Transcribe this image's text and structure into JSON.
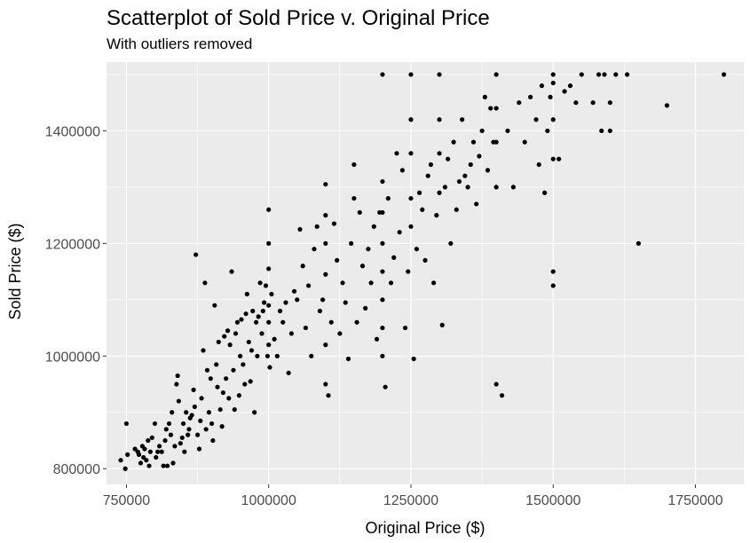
{
  "chart_data": {
    "type": "scatter",
    "title": "Scatterplot of Sold Price v. Original Price",
    "subtitle": "With outliers removed",
    "xlabel": "Original Price ($)",
    "ylabel": "Sold Price ($)",
    "xlim": [
      715000,
      1835000
    ],
    "ylim": [
      772000,
      1522000
    ],
    "x_ticks": [
      750000,
      1000000,
      1250000,
      1500000,
      1750000
    ],
    "x_tick_labels": [
      "750000",
      "1000000",
      "1250000",
      "1500000",
      "1750000"
    ],
    "y_ticks": [
      800000,
      1000000,
      1200000,
      1400000
    ],
    "y_tick_labels": [
      "800000",
      "1000000",
      "1200000",
      "1400000"
    ],
    "grid": true,
    "panel_color": "#ebebeb",
    "grid_color": "#ffffff",
    "point_color": "#000000",
    "points": [
      [
        740000,
        815000
      ],
      [
        748000,
        800000
      ],
      [
        750000,
        880000
      ],
      [
        752000,
        825000
      ],
      [
        765000,
        835000
      ],
      [
        770000,
        830000
      ],
      [
        772000,
        825000
      ],
      [
        775000,
        810000
      ],
      [
        778000,
        840000
      ],
      [
        780000,
        820000
      ],
      [
        782000,
        835000
      ],
      [
        785000,
        815000
      ],
      [
        788000,
        850000
      ],
      [
        790000,
        805000
      ],
      [
        792000,
        830000
      ],
      [
        795000,
        855000
      ],
      [
        800000,
        880000
      ],
      [
        802000,
        820000
      ],
      [
        805000,
        830000
      ],
      [
        808000,
        840000
      ],
      [
        812000,
        830000
      ],
      [
        815000,
        805000
      ],
      [
        818000,
        850000
      ],
      [
        820000,
        870000
      ],
      [
        822000,
        805000
      ],
      [
        825000,
        880000
      ],
      [
        828000,
        860000
      ],
      [
        830000,
        900000
      ],
      [
        832000,
        810000
      ],
      [
        835000,
        840000
      ],
      [
        838000,
        950000
      ],
      [
        840000,
        965000
      ],
      [
        842000,
        920000
      ],
      [
        845000,
        845000
      ],
      [
        848000,
        855000
      ],
      [
        850000,
        880000
      ],
      [
        852000,
        830000
      ],
      [
        855000,
        900000
      ],
      [
        858000,
        860000
      ],
      [
        860000,
        870000
      ],
      [
        862000,
        890000
      ],
      [
        865000,
        895000
      ],
      [
        868000,
        940000
      ],
      [
        870000,
        910000
      ],
      [
        872000,
        1180000
      ],
      [
        875000,
        860000
      ],
      [
        878000,
        835000
      ],
      [
        880000,
        885000
      ],
      [
        882000,
        925000
      ],
      [
        885000,
        1010000
      ],
      [
        888000,
        1130000
      ],
      [
        890000,
        870000
      ],
      [
        892000,
        975000
      ],
      [
        895000,
        900000
      ],
      [
        898000,
        960000
      ],
      [
        900000,
        880000
      ],
      [
        902000,
        850000
      ],
      [
        905000,
        1090000
      ],
      [
        908000,
        985000
      ],
      [
        910000,
        945000
      ],
      [
        912000,
        1025000
      ],
      [
        915000,
        905000
      ],
      [
        918000,
        875000
      ],
      [
        920000,
        935000
      ],
      [
        922000,
        1035000
      ],
      [
        925000,
        960000
      ],
      [
        928000,
        1045000
      ],
      [
        930000,
        925000
      ],
      [
        932000,
        1020000
      ],
      [
        935000,
        1150000
      ],
      [
        938000,
        975000
      ],
      [
        940000,
        905000
      ],
      [
        942000,
        1040000
      ],
      [
        945000,
        1060000
      ],
      [
        948000,
        930000
      ],
      [
        950000,
        1000000
      ],
      [
        952000,
        1065000
      ],
      [
        955000,
        985000
      ],
      [
        958000,
        950000
      ],
      [
        960000,
        1075000
      ],
      [
        962000,
        1110000
      ],
      [
        965000,
        1025000
      ],
      [
        968000,
        955000
      ],
      [
        970000,
        1010000
      ],
      [
        972000,
        1080000
      ],
      [
        975000,
        900000
      ],
      [
        978000,
        1060000
      ],
      [
        980000,
        1000000
      ],
      [
        982000,
        1070000
      ],
      [
        985000,
        1130000
      ],
      [
        988000,
        1040000
      ],
      [
        990000,
        1080000
      ],
      [
        992000,
        1095000
      ],
      [
        995000,
        1125000
      ],
      [
        998000,
        1000000
      ],
      [
        1000000,
        1020000
      ],
      [
        1000000,
        1060000
      ],
      [
        1000000,
        1090000
      ],
      [
        1000000,
        1155000
      ],
      [
        1000000,
        1200000
      ],
      [
        1000000,
        1260000
      ],
      [
        1002000,
        980000
      ],
      [
        1005000,
        1110000
      ],
      [
        1010000,
        1030000
      ],
      [
        1015000,
        1000000
      ],
      [
        1020000,
        1080000
      ],
      [
        1025000,
        1060000
      ],
      [
        1030000,
        1095000
      ],
      [
        1035000,
        970000
      ],
      [
        1040000,
        1040000
      ],
      [
        1045000,
        1115000
      ],
      [
        1050000,
        1100000
      ],
      [
        1055000,
        1225000
      ],
      [
        1060000,
        1160000
      ],
      [
        1065000,
        1050000
      ],
      [
        1070000,
        1125000
      ],
      [
        1075000,
        1000000
      ],
      [
        1080000,
        1190000
      ],
      [
        1085000,
        1230000
      ],
      [
        1090000,
        1080000
      ],
      [
        1095000,
        1100000
      ],
      [
        1100000,
        950000
      ],
      [
        1100000,
        1020000
      ],
      [
        1100000,
        1145000
      ],
      [
        1100000,
        1200000
      ],
      [
        1100000,
        1250000
      ],
      [
        1100000,
        1305000
      ],
      [
        1105000,
        930000
      ],
      [
        1110000,
        1060000
      ],
      [
        1115000,
        1235000
      ],
      [
        1120000,
        1170000
      ],
      [
        1125000,
        1040000
      ],
      [
        1130000,
        1130000
      ],
      [
        1135000,
        1095000
      ],
      [
        1140000,
        995000
      ],
      [
        1145000,
        1200000
      ],
      [
        1150000,
        1280000
      ],
      [
        1150000,
        1340000
      ],
      [
        1155000,
        1060000
      ],
      [
        1160000,
        1255000
      ],
      [
        1165000,
        1160000
      ],
      [
        1170000,
        1085000
      ],
      [
        1175000,
        1190000
      ],
      [
        1180000,
        1130000
      ],
      [
        1185000,
        1230000
      ],
      [
        1190000,
        1030000
      ],
      [
        1195000,
        1255000
      ],
      [
        1200000,
        1000000
      ],
      [
        1200000,
        1050000
      ],
      [
        1200000,
        1100000
      ],
      [
        1200000,
        1150000
      ],
      [
        1200000,
        1200000
      ],
      [
        1200000,
        1255000
      ],
      [
        1200000,
        1310000
      ],
      [
        1200000,
        1500000
      ],
      [
        1205000,
        945000
      ],
      [
        1210000,
        1280000
      ],
      [
        1215000,
        1130000
      ],
      [
        1220000,
        1175000
      ],
      [
        1225000,
        1360000
      ],
      [
        1230000,
        1220000
      ],
      [
        1235000,
        1330000
      ],
      [
        1240000,
        1050000
      ],
      [
        1245000,
        1150000
      ],
      [
        1250000,
        1230000
      ],
      [
        1250000,
        1280000
      ],
      [
        1250000,
        1360000
      ],
      [
        1250000,
        1420000
      ],
      [
        1250000,
        1500000
      ],
      [
        1255000,
        995000
      ],
      [
        1260000,
        1190000
      ],
      [
        1265000,
        1290000
      ],
      [
        1270000,
        1260000
      ],
      [
        1275000,
        1170000
      ],
      [
        1280000,
        1320000
      ],
      [
        1285000,
        1340000
      ],
      [
        1290000,
        1130000
      ],
      [
        1295000,
        1250000
      ],
      [
        1300000,
        1290000
      ],
      [
        1300000,
        1360000
      ],
      [
        1300000,
        1420000
      ],
      [
        1300000,
        1500000
      ],
      [
        1305000,
        1055000
      ],
      [
        1310000,
        1300000
      ],
      [
        1315000,
        1350000
      ],
      [
        1320000,
        1200000
      ],
      [
        1325000,
        1380000
      ],
      [
        1330000,
        1260000
      ],
      [
        1335000,
        1310000
      ],
      [
        1340000,
        1420000
      ],
      [
        1345000,
        1320000
      ],
      [
        1350000,
        1300000
      ],
      [
        1355000,
        1340000
      ],
      [
        1360000,
        1380000
      ],
      [
        1365000,
        1270000
      ],
      [
        1370000,
        1355000
      ],
      [
        1375000,
        1400000
      ],
      [
        1380000,
        1460000
      ],
      [
        1385000,
        1330000
      ],
      [
        1390000,
        1440000
      ],
      [
        1395000,
        1380000
      ],
      [
        1400000,
        950000
      ],
      [
        1400000,
        1300000
      ],
      [
        1400000,
        1380000
      ],
      [
        1400000,
        1440000
      ],
      [
        1400000,
        1500000
      ],
      [
        1410000,
        930000
      ],
      [
        1420000,
        1400000
      ],
      [
        1430000,
        1300000
      ],
      [
        1440000,
        1450000
      ],
      [
        1450000,
        1380000
      ],
      [
        1460000,
        1460000
      ],
      [
        1470000,
        1420000
      ],
      [
        1475000,
        1340000
      ],
      [
        1480000,
        1480000
      ],
      [
        1485000,
        1290000
      ],
      [
        1490000,
        1400000
      ],
      [
        1495000,
        1460000
      ],
      [
        1500000,
        1125000
      ],
      [
        1500000,
        1150000
      ],
      [
        1500000,
        1350000
      ],
      [
        1500000,
        1420000
      ],
      [
        1500000,
        1485000
      ],
      [
        1500000,
        1500000
      ],
      [
        1510000,
        1350000
      ],
      [
        1520000,
        1470000
      ],
      [
        1530000,
        1480000
      ],
      [
        1540000,
        1450000
      ],
      [
        1550000,
        1500000
      ],
      [
        1570000,
        1450000
      ],
      [
        1580000,
        1500000
      ],
      [
        1585000,
        1400000
      ],
      [
        1590000,
        1500000
      ],
      [
        1600000,
        1400000
      ],
      [
        1600000,
        1450000
      ],
      [
        1610000,
        1500000
      ],
      [
        1630000,
        1500000
      ],
      [
        1650000,
        1200000
      ],
      [
        1700000,
        1445000
      ],
      [
        1800000,
        1500000
      ]
    ]
  }
}
